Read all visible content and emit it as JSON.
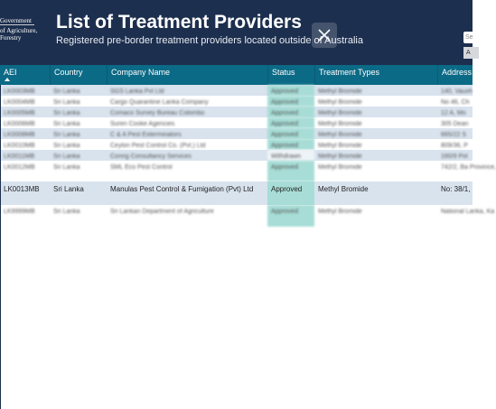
{
  "header": {
    "logo_lines": [
      "Government",
      "of Agriculture,",
      "Forestry"
    ],
    "title": "List of Treatment Providers",
    "subtitle": "Registered pre-border treatment providers located outside of Australia",
    "search_placeholder": "Se",
    "filter_label": "A"
  },
  "table": {
    "columns": [
      "AEI",
      "Country",
      "Company Name",
      "Status",
      "Treatment Types",
      "Address"
    ],
    "rows": [
      {
        "aei": "LK0003MB",
        "country": "Sri Lanka",
        "company": "SGS Lanka Pvt Ltd",
        "status": "Approved",
        "types": "Methyl Bromide",
        "address": "140, Vauxh"
      },
      {
        "aei": "LK0004MB",
        "country": "Sri Lanka",
        "company": "Cargo Quarantine Lanka Company",
        "status": "Approved",
        "types": "Methyl Bromide",
        "address": "No 46, Ch"
      },
      {
        "aei": "LK0005MB",
        "country": "Sri Lanka",
        "company": "Comaco Survey Bureau Colombo",
        "status": "Approved",
        "types": "Methyl Bromide",
        "address": "12 A, Mo"
      },
      {
        "aei": "LK0006MB",
        "country": "Sri Lanka",
        "company": "Suren Cooke Agencies",
        "status": "Approved",
        "types": "Methyl Bromide",
        "address": "305 Dean"
      },
      {
        "aei": "LK0008MB",
        "country": "Sri Lanka",
        "company": "C & A Pest Exterminators",
        "status": "Approved",
        "types": "Methyl Bromide",
        "address": "665/22 S"
      },
      {
        "aei": "LK0010MB",
        "country": "Sri Lanka",
        "company": "Ceylon Pest Control Co. (Pvt.) Ltd",
        "status": "Approved",
        "types": "Methyl Bromide",
        "address": "809/36, P"
      },
      {
        "aei": "LK0011MB",
        "country": "Sri Lanka",
        "company": "Conrig Consultancy Services",
        "status": "Withdrawn",
        "types": "Methyl Bromide",
        "address": "160/9 Pol"
      },
      {
        "aei": "LK0012MB",
        "country": "Sri Lanka",
        "company": "SML Eco Pest Control",
        "status": "Approved",
        "types": "Methyl Bromide",
        "address": "742/2, Ba Province,"
      },
      {
        "aei": "LK0013MB",
        "country": "Sri Lanka",
        "company": "Manulas Pest Control & Fumigation (Pvt) Ltd",
        "status": "Approved",
        "types": "Methyl Bromide",
        "address": "No: 38/1,"
      },
      {
        "aei": "LK9999MB",
        "country": "Sri Lanka",
        "company": "Sri Lankan Department of Agriculture",
        "status": "Approved",
        "types": "Methyl Bromide",
        "address": "National Lanka, Ka"
      }
    ]
  }
}
